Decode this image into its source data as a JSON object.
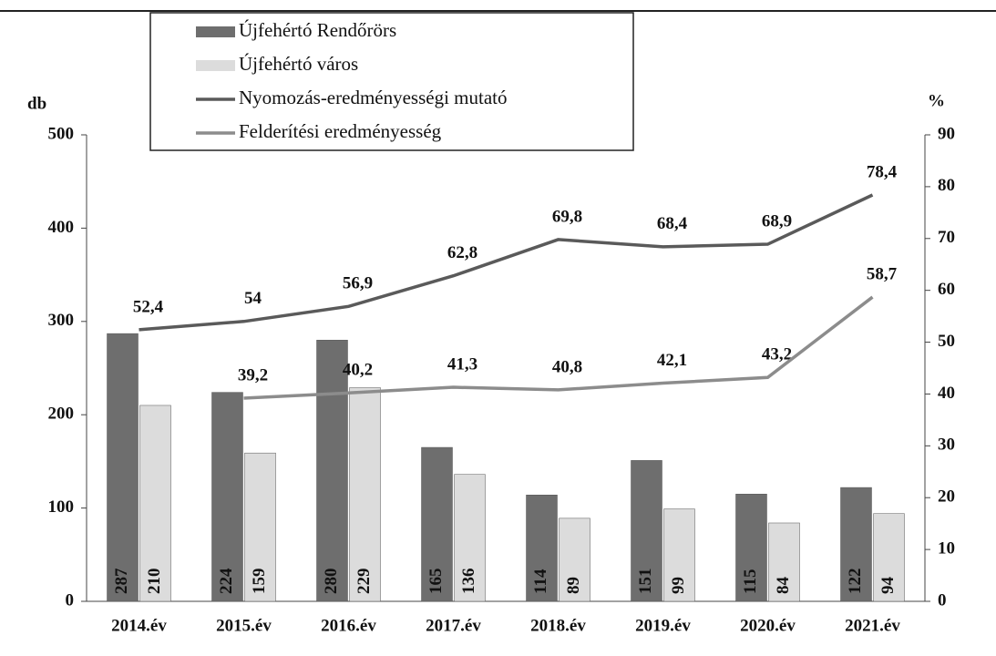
{
  "chart_data": {
    "type": "bar",
    "y_label": "db",
    "y2_label": "%",
    "categories": [
      "2014.év",
      "2015.év",
      "2016.év",
      "2017.év",
      "2018.év",
      "2019.év",
      "2020.év",
      "2021.év"
    ],
    "series": [
      {
        "name": "Újfehértó Rendőrörs",
        "color": "#6e6e6e",
        "values": [
          287,
          224,
          280,
          165,
          114,
          151,
          115,
          122
        ]
      },
      {
        "name": "Újfehértó  város",
        "color": "#dcdcdc",
        "values": [
          210,
          159,
          229,
          136,
          89,
          99,
          84,
          94
        ]
      },
      {
        "name": "Nyomozás-eredményességi mutató",
        "type": "line",
        "axis": "y2",
        "color": "#5a5a5a",
        "values": [
          52.4,
          54,
          56.9,
          62.8,
          69.8,
          68.4,
          68.9,
          78.4
        ],
        "value_labels": [
          "52,4",
          "54",
          "56,9",
          "62,8",
          "69,8",
          "68,4",
          "68,9",
          "78,4"
        ]
      },
      {
        "name": "Felderítési eredményesség",
        "type": "line",
        "axis": "y2",
        "color": "#8c8c8c",
        "values": [
          null,
          39.2,
          40.2,
          41.3,
          40.8,
          42.1,
          43.2,
          58.7
        ],
        "value_labels": [
          null,
          "39,2",
          "40,2",
          "41,3",
          "40,8",
          "42,1",
          "43,2",
          "58,7"
        ]
      }
    ],
    "ylim": [
      0,
      500
    ],
    "yticks": [
      0,
      100,
      200,
      300,
      400,
      500
    ],
    "y2lim": [
      0,
      90
    ],
    "y2ticks": [
      0,
      10,
      20,
      30,
      40,
      50,
      60,
      70,
      80,
      90
    ]
  }
}
